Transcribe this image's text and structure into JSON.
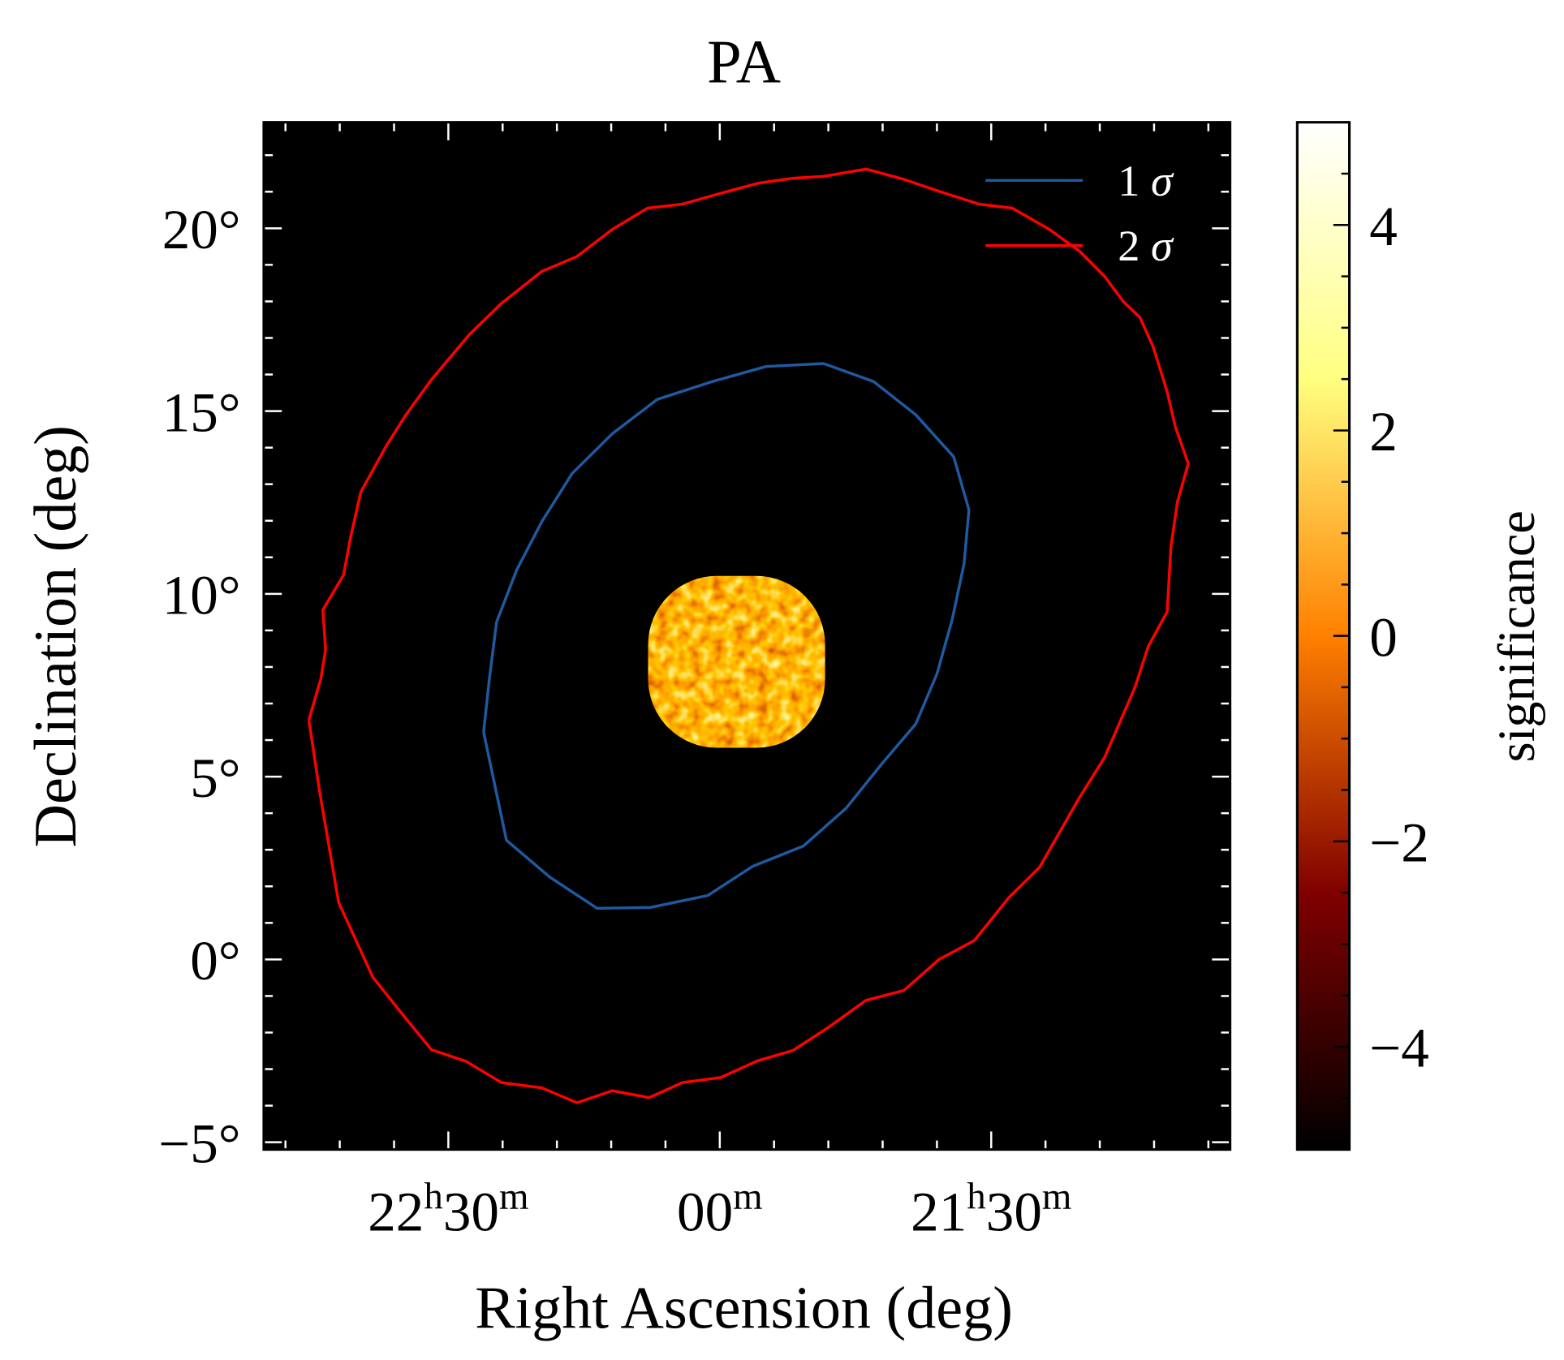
{
  "chart_data": {
    "type": "heatmap",
    "title": "PA",
    "xlabel": "Right Ascension (deg)",
    "ylabel": "Declination (deg)",
    "xlim_ra_hours": [
      22.84,
      21.06
    ],
    "ylim_dec_deg": [
      -5.2,
      22.9
    ],
    "x_ticks": [
      {
        "value": 22.5,
        "h": "22",
        "hsup": "h",
        "m": "30",
        "msup": "m"
      },
      {
        "value": 22.0,
        "h": "",
        "hsup": "",
        "m": "00",
        "msup": "m"
      },
      {
        "value": 21.5,
        "h": "21",
        "hsup": "h",
        "m": "30",
        "msup": "m"
      }
    ],
    "x_minor_step_hours": 0.1,
    "y_ticks": [
      {
        "value": 20,
        "label": "20°"
      },
      {
        "value": 15,
        "label": "15°"
      },
      {
        "value": 10,
        "label": "10°"
      },
      {
        "value": 5,
        "label": "5°"
      },
      {
        "value": 0,
        "label": "0°"
      },
      {
        "value": -5,
        "label": "−5°"
      }
    ],
    "y_minor_step_deg": 1,
    "colorbar": {
      "label": "significance",
      "range": [
        -5,
        5
      ],
      "colormap": "afmhot",
      "colors": [
        "#000000",
        "#800000",
        "#ff8000",
        "#ffff80",
        "#ffffff"
      ],
      "ticks": [
        {
          "value": 4,
          "label": "4"
        },
        {
          "value": 2,
          "label": "2"
        },
        {
          "value": 0,
          "label": "0"
        },
        {
          "value": -2,
          "label": "−2"
        },
        {
          "value": -4,
          "label": "−4"
        }
      ],
      "minor_step": 0.5
    },
    "significance_map": {
      "center_ra_hours": 21.969,
      "center_dec_deg": 8.14,
      "radius_deg": 2.35,
      "typical_range": [
        -2,
        2
      ]
    },
    "legend": {
      "placement": "top-right",
      "entries": [
        {
          "label": "1 σ",
          "num": "1",
          "sym": "σ",
          "color": "#1f5aa0"
        },
        {
          "label": "2 σ",
          "num": "2",
          "sym": "σ",
          "color": "#ff0000"
        }
      ]
    },
    "series": [
      {
        "name": "1 σ",
        "color": "#1f5aa0",
        "ra_hours": [
          22.435,
          22.424,
          22.411,
          22.374,
          22.328,
          22.272,
          22.198,
          22.115,
          22.013,
          21.915,
          21.809,
          21.717,
          21.639,
          21.569,
          21.541,
          21.55,
          21.572,
          21.6,
          21.639,
          21.702,
          21.767,
          21.846,
          21.939,
          22.022,
          22.128,
          22.226,
          22.313,
          22.393,
          22.435
        ],
        "dec_deg": [
          6.22,
          7.73,
          9.23,
          10.66,
          11.97,
          13.29,
          14.38,
          15.32,
          15.81,
          16.22,
          16.3,
          15.81,
          14.9,
          13.75,
          12.3,
          10.82,
          9.29,
          7.81,
          6.44,
          5.34,
          4.14,
          3.1,
          2.55,
          1.75,
          1.42,
          1.4,
          2.25,
          3.26,
          6.22
        ]
      },
      {
        "name": "2 σ",
        "color": "#ff0000",
        "ra_hours": [
          22.757,
          22.737,
          22.702,
          22.639,
          22.583,
          22.531,
          22.467,
          22.402,
          22.328,
          22.263,
          22.198,
          22.13,
          22.069,
          21.998,
          21.93,
          21.865,
          21.8,
          21.731,
          21.661,
          21.596,
          21.531,
          21.467,
          21.411,
          21.337,
          21.291,
          21.235,
          21.211,
          21.176,
          21.169,
          21.157,
          21.137,
          21.161,
          21.176,
          21.202,
          21.226,
          21.257,
          21.291,
          21.337,
          21.393,
          21.461,
          21.522,
          21.596,
          21.661,
          21.73,
          21.809,
          21.865,
          21.93,
          21.998,
          22.069,
          22.133,
          22.198,
          22.263,
          22.328,
          22.402,
          22.461,
          22.531,
          22.578,
          22.615,
          22.661,
          22.68,
          22.693,
          22.731,
          22.726,
          22.735,
          22.757
        ],
        "dec_deg": [
          6.55,
          4.58,
          1.56,
          -0.49,
          -1.53,
          -2.47,
          -2.79,
          -3.37,
          -3.51,
          -3.92,
          -3.59,
          -3.78,
          -3.37,
          -3.23,
          -2.77,
          -2.49,
          -1.86,
          -1.12,
          -0.85,
          0.0,
          0.52,
          1.7,
          2.52,
          4.44,
          5.53,
          7.45,
          8.55,
          9.51,
          11.29,
          12.52,
          13.56,
          14.58,
          15.53,
          16.77,
          17.56,
          18.0,
          18.68,
          19.37,
          19.97,
          20.55,
          20.66,
          21.01,
          21.34,
          21.62,
          21.42,
          21.37,
          21.23,
          20.96,
          20.66,
          20.55,
          19.97,
          19.23,
          18.82,
          17.95,
          17.1,
          15.86,
          14.9,
          14.03,
          12.79,
          11.56,
          10.52,
          9.56,
          8.47,
          7.67,
          6.55
        ]
      }
    ]
  }
}
